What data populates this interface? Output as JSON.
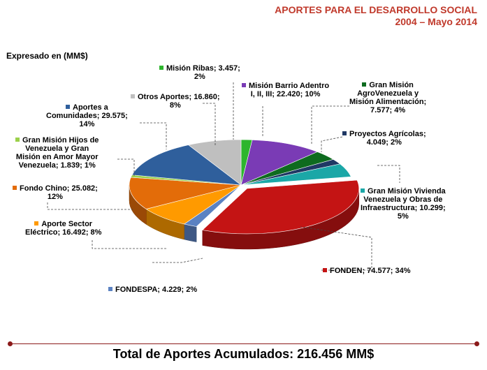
{
  "header": {
    "title": "APORTES PARA EL DESARROLLO SOCIAL",
    "subtitle": "2004 – Mayo 2014"
  },
  "units_label": "Expresado en (MM$)",
  "total_label": "Total de Aportes Acumulados: 216.456 MM$",
  "chart_data": {
    "type": "pie",
    "slices": [
      {
        "label_lines": [
          "Misión Ribas; 3.457;",
          "2%"
        ],
        "value": 3457,
        "percent": 2,
        "color": "#2db52d"
      },
      {
        "label_lines": [
          "Misión Barrio Adentro",
          "I, II, III; 22.420; 10%"
        ],
        "value": 22420,
        "percent": 10,
        "color": "#7a3bb5"
      },
      {
        "label_lines": [
          "Gran Misión",
          "AgroVenezuela y",
          "Misión Alimentación;",
          "7.577; 4%"
        ],
        "value": 7577,
        "percent": 4,
        "color": "#0e6b1f"
      },
      {
        "label_lines": [
          "Proyectos Agrícolas;",
          "4.049; 2%"
        ],
        "value": 4049,
        "percent": 2,
        "color": "#1f3864"
      },
      {
        "label_lines": [
          "Gran Misión Vivienda",
          "Venezuela y Obras de",
          "Infraestructura; 10.299;",
          "5%"
        ],
        "value": 10299,
        "percent": 5,
        "color": "#1ba7a7"
      },
      {
        "label_lines": [
          "FONDEN; 74.577; 34%"
        ],
        "value": 74577,
        "percent": 34,
        "color": "#c41414"
      },
      {
        "label_lines": [
          "FONDESPA; 4.229; 2%"
        ],
        "value": 4229,
        "percent": 2,
        "color": "#5b82c2"
      },
      {
        "label_lines": [
          "Aporte Sector",
          "Eléctrico; 16.492; 8%"
        ],
        "value": 16492,
        "percent": 8,
        "color": "#ff9a00"
      },
      {
        "label_lines": [
          "Fondo Chino; 25.082;",
          "12%"
        ],
        "value": 25082,
        "percent": 12,
        "color": "#e36c09"
      },
      {
        "label_lines": [
          "Gran Misión Hijos de",
          "Venezuela y Gran",
          "Misión en Amor Mayor",
          "Venezuela; 1.839; 1%"
        ],
        "value": 1839,
        "percent": 1,
        "color": "#9bd04a"
      },
      {
        "label_lines": [
          "Aportes a",
          "Comunidades; 29.575;",
          "14%"
        ],
        "value": 29575,
        "percent": 14,
        "color": "#2f5f9c"
      },
      {
        "label_lines": [
          "Otros Aportes; 16.860;",
          "8%"
        ],
        "value": 16860,
        "percent": 8,
        "color": "#bfbfbf"
      }
    ]
  }
}
